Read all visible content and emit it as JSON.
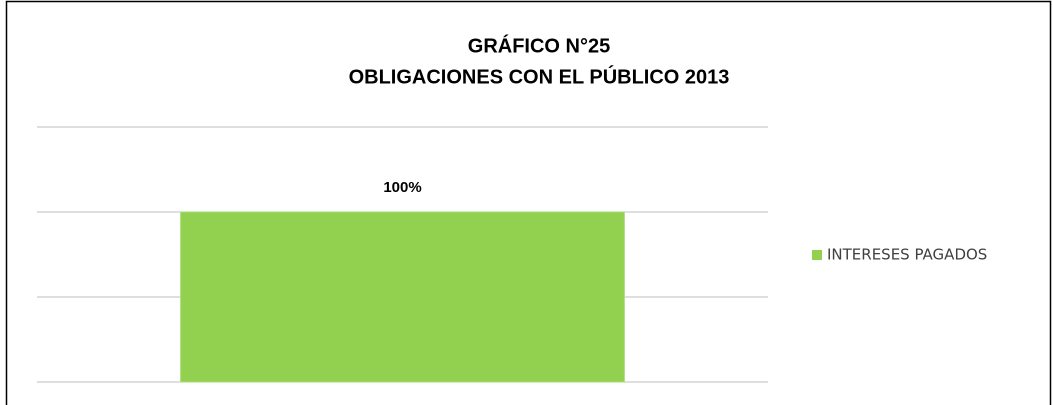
{
  "chart_data": {
    "type": "bar",
    "title": "GRÁFICO N°25",
    "subtitle": "OBLIGACIONES CON EL PÚBLICO  2013",
    "categories": [
      null
    ],
    "series": [
      {
        "name": "INTERESES PAGADOS",
        "color": "#92d050",
        "values": [
          100
        ],
        "value_labels": [
          "100%"
        ]
      }
    ],
    "ylim": [
      0,
      150
    ],
    "yticks": [
      0,
      50,
      100,
      150
    ],
    "grid": true,
    "legend": "right"
  }
}
